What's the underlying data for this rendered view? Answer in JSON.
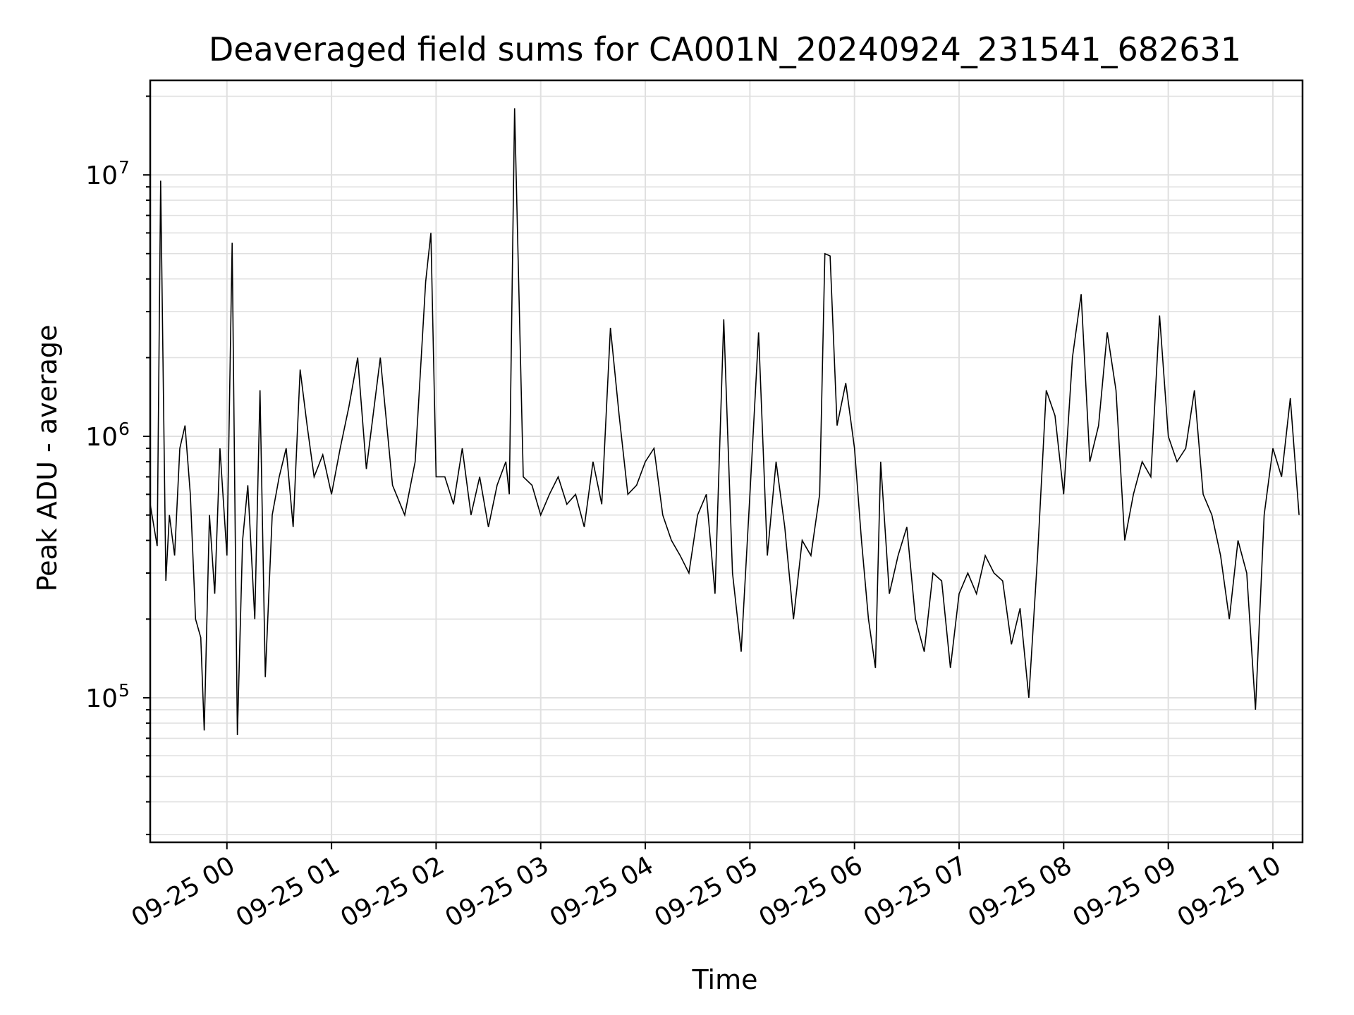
{
  "chart_data": {
    "type": "line",
    "title": "Deaveraged field sums for CA001N_20240924_231541_682631",
    "xlabel": "Time",
    "ylabel": "Peak ADU - average",
    "yscale": "log",
    "ylim": [
      28000,
      23000000
    ],
    "xlim": [
      "2024-09-24 23:16",
      "2024-09-25 10:17"
    ],
    "grid": true,
    "line_color": "#000000",
    "grid_color": "#e0e0e0",
    "x_ticks": [
      "09-25 00",
      "09-25 01",
      "09-25 02",
      "09-25 03",
      "09-25 04",
      "09-25 05",
      "09-25 06",
      "09-25 07",
      "09-25 08",
      "09-25 09",
      "09-25 10"
    ],
    "y_ticks": [
      {
        "value": 100000,
        "base": "10",
        "exp": "5"
      },
      {
        "value": 1000000,
        "base": "10",
        "exp": "6"
      },
      {
        "value": 10000000,
        "base": "10",
        "exp": "7"
      }
    ],
    "series": [
      {
        "x": [
          "2024-09-24 23:16",
          "2024-09-24 23:20",
          "2024-09-24 23:22",
          "2024-09-24 23:25",
          "2024-09-24 23:27",
          "2024-09-24 23:30",
          "2024-09-24 23:33",
          "2024-09-24 23:36",
          "2024-09-24 23:39",
          "2024-09-24 23:42",
          "2024-09-24 23:45",
          "2024-09-24 23:47",
          "2024-09-24 23:50",
          "2024-09-24 23:53",
          "2024-09-24 23:56",
          "2024-09-25 00:00",
          "2024-09-25 00:03",
          "2024-09-25 00:06",
          "2024-09-25 00:09",
          "2024-09-25 00:12",
          "2024-09-25 00:16",
          "2024-09-25 00:19",
          "2024-09-25 00:22",
          "2024-09-25 00:26",
          "2024-09-25 00:30",
          "2024-09-25 00:34",
          "2024-09-25 00:38",
          "2024-09-25 00:42",
          "2024-09-25 00:46",
          "2024-09-25 00:50",
          "2024-09-25 00:55",
          "2024-09-25 01:00",
          "2024-09-25 01:05",
          "2024-09-25 01:10",
          "2024-09-25 01:15",
          "2024-09-25 01:20",
          "2024-09-25 01:28",
          "2024-09-25 01:35",
          "2024-09-25 01:42",
          "2024-09-25 01:48",
          "2024-09-25 01:54",
          "2024-09-25 01:57",
          "2024-09-25 02:00",
          "2024-09-25 02:05",
          "2024-09-25 02:10",
          "2024-09-25 02:15",
          "2024-09-25 02:20",
          "2024-09-25 02:25",
          "2024-09-25 02:30",
          "2024-09-25 02:35",
          "2024-09-25 02:40",
          "2024-09-25 02:42",
          "2024-09-25 02:45",
          "2024-09-25 02:50",
          "2024-09-25 02:55",
          "2024-09-25 03:00",
          "2024-09-25 03:05",
          "2024-09-25 03:10",
          "2024-09-25 03:15",
          "2024-09-25 03:20",
          "2024-09-25 03:25",
          "2024-09-25 03:30",
          "2024-09-25 03:35",
          "2024-09-25 03:40",
          "2024-09-25 03:45",
          "2024-09-25 03:50",
          "2024-09-25 03:55",
          "2024-09-25 04:00",
          "2024-09-25 04:05",
          "2024-09-25 04:10",
          "2024-09-25 04:15",
          "2024-09-25 04:20",
          "2024-09-25 04:25",
          "2024-09-25 04:30",
          "2024-09-25 04:35",
          "2024-09-25 04:40",
          "2024-09-25 04:45",
          "2024-09-25 04:50",
          "2024-09-25 04:55",
          "2024-09-25 05:00",
          "2024-09-25 05:05",
          "2024-09-25 05:10",
          "2024-09-25 05:15",
          "2024-09-25 05:20",
          "2024-09-25 05:25",
          "2024-09-25 05:30",
          "2024-09-25 05:35",
          "2024-09-25 05:40",
          "2024-09-25 05:43",
          "2024-09-25 05:46",
          "2024-09-25 05:50",
          "2024-09-25 05:55",
          "2024-09-25 06:00",
          "2024-09-25 06:04",
          "2024-09-25 06:08",
          "2024-09-25 06:12",
          "2024-09-25 06:15",
          "2024-09-25 06:20",
          "2024-09-25 06:25",
          "2024-09-25 06:30",
          "2024-09-25 06:35",
          "2024-09-25 06:40",
          "2024-09-25 06:45",
          "2024-09-25 06:50",
          "2024-09-25 06:55",
          "2024-09-25 07:00",
          "2024-09-25 07:05",
          "2024-09-25 07:10",
          "2024-09-25 07:15",
          "2024-09-25 07:20",
          "2024-09-25 07:25",
          "2024-09-25 07:30",
          "2024-09-25 07:35",
          "2024-09-25 07:40",
          "2024-09-25 07:45",
          "2024-09-25 07:50",
          "2024-09-25 07:55",
          "2024-09-25 08:00",
          "2024-09-25 08:05",
          "2024-09-25 08:10",
          "2024-09-25 08:15",
          "2024-09-25 08:20",
          "2024-09-25 08:25",
          "2024-09-25 08:30",
          "2024-09-25 08:35",
          "2024-09-25 08:40",
          "2024-09-25 08:45",
          "2024-09-25 08:50",
          "2024-09-25 08:55",
          "2024-09-25 09:00",
          "2024-09-25 09:05",
          "2024-09-25 09:10",
          "2024-09-25 09:15",
          "2024-09-25 09:20",
          "2024-09-25 09:25",
          "2024-09-25 09:30",
          "2024-09-25 09:35",
          "2024-09-25 09:40",
          "2024-09-25 09:45",
          "2024-09-25 09:50",
          "2024-09-25 09:55",
          "2024-09-25 10:00",
          "2024-09-25 10:05",
          "2024-09-25 10:10",
          "2024-09-25 10:15"
        ],
        "values": [
          550000,
          380000,
          9500000,
          280000,
          500000,
          350000,
          900000,
          1100000,
          600000,
          200000,
          170000,
          75000,
          500000,
          250000,
          900000,
          350000,
          5500000,
          72000,
          400000,
          650000,
          200000,
          1500000,
          120000,
          500000,
          700000,
          900000,
          450000,
          1800000,
          1100000,
          700000,
          850000,
          600000,
          900000,
          1300000,
          2000000,
          750000,
          2000000,
          650000,
          500000,
          800000,
          3900000,
          6000000,
          700000,
          700000,
          550000,
          900000,
          500000,
          700000,
          450000,
          650000,
          800000,
          600000,
          18000000,
          700000,
          650000,
          500000,
          600000,
          700000,
          550000,
          600000,
          450000,
          800000,
          550000,
          2600000,
          1200000,
          600000,
          650000,
          800000,
          900000,
          500000,
          400000,
          350000,
          300000,
          500000,
          600000,
          250000,
          2800000,
          300000,
          150000,
          600000,
          2500000,
          350000,
          800000,
          450000,
          200000,
          400000,
          350000,
          600000,
          5000000,
          4900000,
          1100000,
          1600000,
          900000,
          400000,
          200000,
          130000,
          800000,
          250000,
          350000,
          450000,
          200000,
          150000,
          300000,
          280000,
          130000,
          250000,
          300000,
          250000,
          350000,
          300000,
          280000,
          160000,
          220000,
          100000,
          350000,
          1500000,
          1200000,
          600000,
          2000000,
          3500000,
          800000,
          1100000,
          2500000,
          1500000,
          400000,
          600000,
          800000,
          700000,
          2900000,
          1000000,
          800000,
          900000,
          1500000,
          600000,
          500000,
          350000,
          200000,
          400000,
          300000,
          90000,
          500000,
          900000,
          700000,
          1400000,
          500000
        ]
      }
    ]
  }
}
